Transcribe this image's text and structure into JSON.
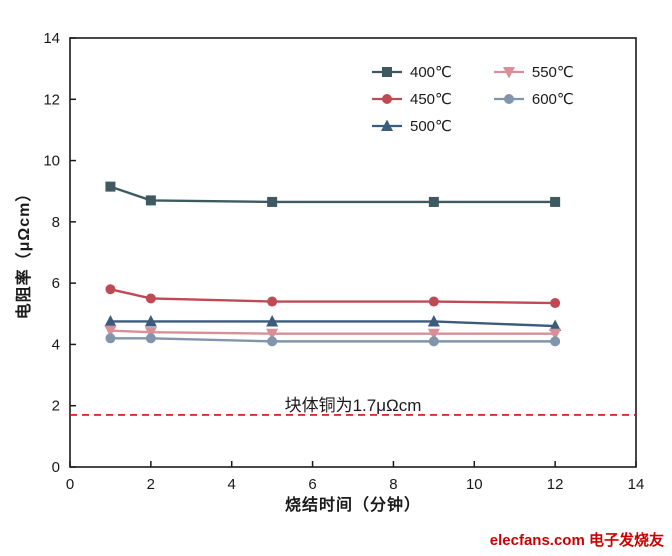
{
  "chart_data": {
    "type": "line",
    "title": "",
    "xlabel": "烧结时间（分钟）",
    "ylabel": "电阻率（μΩcm）",
    "xlim": [
      0,
      14
    ],
    "ylim": [
      0,
      14
    ],
    "xticks": [
      0,
      2,
      4,
      6,
      8,
      10,
      12,
      14
    ],
    "yticks": [
      0,
      2,
      4,
      6,
      8,
      10,
      12,
      14
    ],
    "grid": false,
    "legend_position": "top-right-inside",
    "x": [
      1,
      2,
      5,
      9,
      12
    ],
    "series": [
      {
        "name": "400℃",
        "color": "#3e5a60",
        "marker": "square",
        "values": [
          9.15,
          8.7,
          8.65,
          8.65,
          8.65
        ]
      },
      {
        "name": "450℃",
        "color": "#bf4a56",
        "marker": "circle",
        "values": [
          5.8,
          5.5,
          5.4,
          5.4,
          5.35
        ]
      },
      {
        "name": "500℃",
        "color": "#3c5c7d",
        "marker": "triangle-up",
        "values": [
          4.75,
          4.75,
          4.75,
          4.75,
          4.6
        ]
      },
      {
        "name": "550℃",
        "color": "#d98f97",
        "marker": "triangle-down",
        "values": [
          4.45,
          4.4,
          4.35,
          4.35,
          4.35
        ]
      },
      {
        "name": "600℃",
        "color": "#8195ac",
        "marker": "circle",
        "values": [
          4.2,
          4.2,
          4.1,
          4.1,
          4.1
        ]
      }
    ],
    "reference_line": {
      "y": 1.7,
      "color": "#cc1111",
      "style": "dashed",
      "label": "块体铜为1.7μΩcm"
    }
  },
  "watermark": {
    "site": "elecfans.com",
    "name": "电子发烧友"
  },
  "frame_color": "#1a1a1a"
}
